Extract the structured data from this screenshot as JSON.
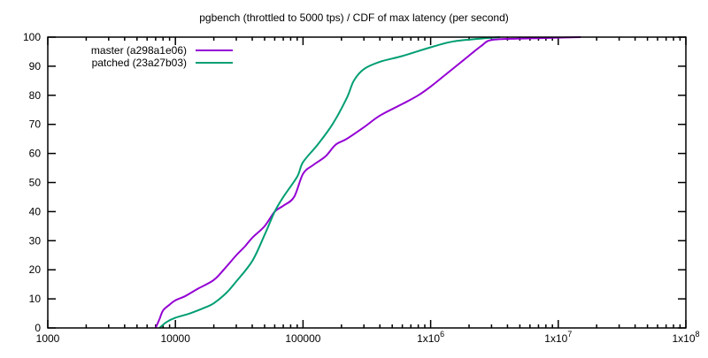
{
  "chart_data": {
    "type": "line",
    "title": "pgbench (throttled to 5000 tps) / CDF of max latency (per second)",
    "xlabel": "",
    "ylabel": "",
    "xscale": "log",
    "xlim": [
      1000,
      100000000
    ],
    "ylim": [
      0,
      100
    ],
    "grid": false,
    "legend_position": "top-left",
    "x_ticks": [
      {
        "value": 1000,
        "label": "1000"
      },
      {
        "value": 10000,
        "label": "10000"
      },
      {
        "value": 100000,
        "label": "100000"
      },
      {
        "value": 1000000,
        "label": "1x10",
        "exp": "6"
      },
      {
        "value": 10000000,
        "label": "1x10",
        "exp": "7"
      },
      {
        "value": 100000000,
        "label": "1x10",
        "exp": "8"
      }
    ],
    "y_ticks": [
      0,
      10,
      20,
      30,
      40,
      50,
      60,
      70,
      80,
      90,
      100
    ],
    "series": [
      {
        "name": "master (a298a1e06)",
        "color": "#9400d3",
        "x": [
          7000,
          7500,
          8000,
          9000,
          10000,
          12000,
          15000,
          20000,
          25000,
          30000,
          35000,
          40000,
          50000,
          60000,
          70000,
          85000,
          100000,
          120000,
          150000,
          180000,
          220000,
          300000,
          400000,
          600000,
          800000,
          1000000,
          1300000,
          1800000,
          2500000,
          3000000,
          5000000,
          10000000,
          15000000
        ],
        "y": [
          0,
          3,
          6,
          8,
          9.5,
          11,
          13.5,
          16.5,
          21,
          25,
          28,
          31,
          35,
          40,
          42,
          45,
          53,
          56,
          59,
          63,
          65,
          69,
          73,
          77,
          80,
          83,
          87,
          92,
          97,
          99,
          99.5,
          99.8,
          100
        ]
      },
      {
        "name": "patched (23a27b03)",
        "color": "#009e73",
        "x": [
          7500,
          8500,
          10000,
          13000,
          17000,
          20000,
          25000,
          30000,
          40000,
          50000,
          60000,
          70000,
          90000,
          100000,
          130000,
          170000,
          220000,
          250000,
          300000,
          400000,
          600000,
          1000000,
          1500000,
          2500000,
          3500000
        ],
        "y": [
          0,
          2,
          3.5,
          5,
          7,
          8.5,
          12,
          16,
          23,
          32,
          40,
          45,
          52,
          57,
          63,
          70,
          79,
          85,
          89,
          91.5,
          93.5,
          96.5,
          98.5,
          99.5,
          100
        ]
      }
    ]
  }
}
